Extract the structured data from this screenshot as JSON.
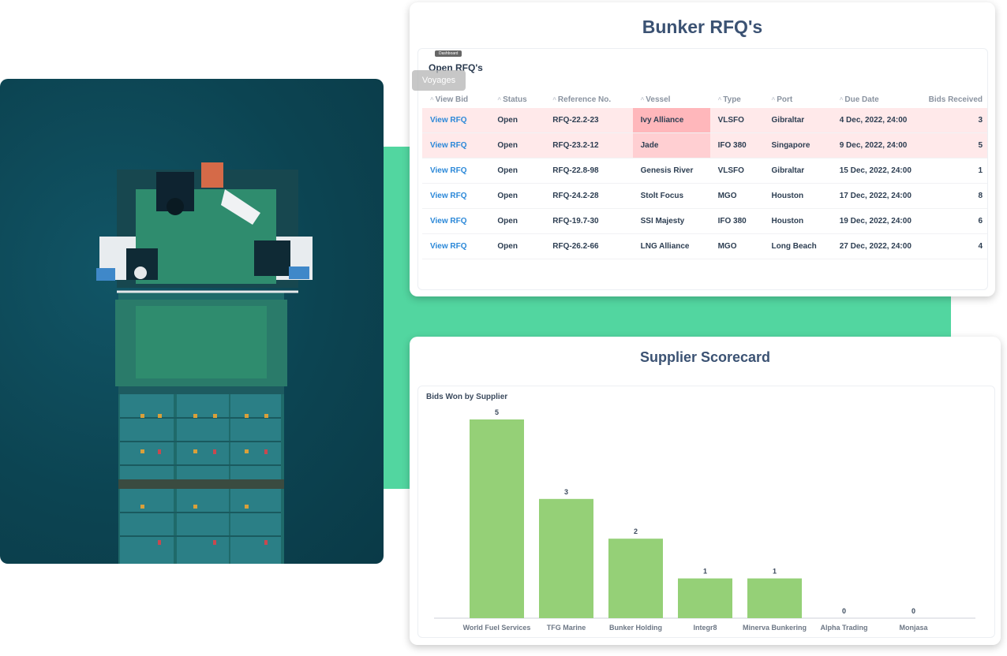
{
  "rfq": {
    "title": "Bunker RFQ's",
    "badge": "Dashboard",
    "section_title": "Open RFQ's",
    "overlay_button": "Voyages",
    "columns": [
      "View Bid",
      "Status",
      "Reference No.",
      "Vessel",
      "Type",
      "Port",
      "Due Date",
      "Bids Received"
    ],
    "rows": [
      {
        "view": "View RFQ",
        "status": "Open",
        "ref": "RFQ-22.2-23",
        "vessel": "Ivy Alliance",
        "type": "VLSFO",
        "port": "Gibraltar",
        "due": "4 Dec, 2022, 24:00",
        "bids": "3"
      },
      {
        "view": "View RFQ",
        "status": "Open",
        "ref": "RFQ-23.2-12",
        "vessel": "Jade",
        "type": "IFO 380",
        "port": "Singapore",
        "due": "9 Dec, 2022, 24:00",
        "bids": "5"
      },
      {
        "view": "View RFQ",
        "status": "Open",
        "ref": "RFQ-22.8-98",
        "vessel": "Genesis River",
        "type": "VLSFO",
        "port": "Gibraltar",
        "due": "15 Dec, 2022, 24:00",
        "bids": "1"
      },
      {
        "view": "View RFQ",
        "status": "Open",
        "ref": "RFQ-24.2-28",
        "vessel": "Stolt Focus",
        "type": "MGO",
        "port": "Houston",
        "due": "17 Dec, 2022, 24:00",
        "bids": "8"
      },
      {
        "view": "View RFQ",
        "status": "Open",
        "ref": "RFQ-19.7-30",
        "vessel": "SSI Majesty",
        "type": "IFO 380",
        "port": "Houston",
        "due": "19 Dec, 2022, 24:00",
        "bids": "6"
      },
      {
        "view": "View RFQ",
        "status": "Open",
        "ref": "RFQ-26.2-66",
        "vessel": "LNG Alliance",
        "type": "MGO",
        "port": "Long Beach",
        "due": "27 Dec, 2022, 24:00",
        "bids": "4"
      }
    ]
  },
  "scorecard": {
    "title": "Supplier Scorecard",
    "chart_title": "Bids Won by Supplier"
  },
  "chart_data": {
    "type": "bar",
    "title": "Bids Won by Supplier",
    "categories": [
      "World Fuel Services",
      "TFG Marine",
      "Bunker Holding",
      "Integr8",
      "Minerva Bunkering",
      "Alpha Trading",
      "Monjasa"
    ],
    "values": [
      5,
      3,
      2,
      1,
      1,
      0,
      0
    ],
    "ylim": [
      0,
      5
    ],
    "grid": false,
    "bar_color": "#95d077"
  },
  "colors": {
    "accent_green": "#52d6a0",
    "title_blue": "#3b5273",
    "link_blue": "#2b88d8",
    "highlight": "#ffe9ea"
  }
}
